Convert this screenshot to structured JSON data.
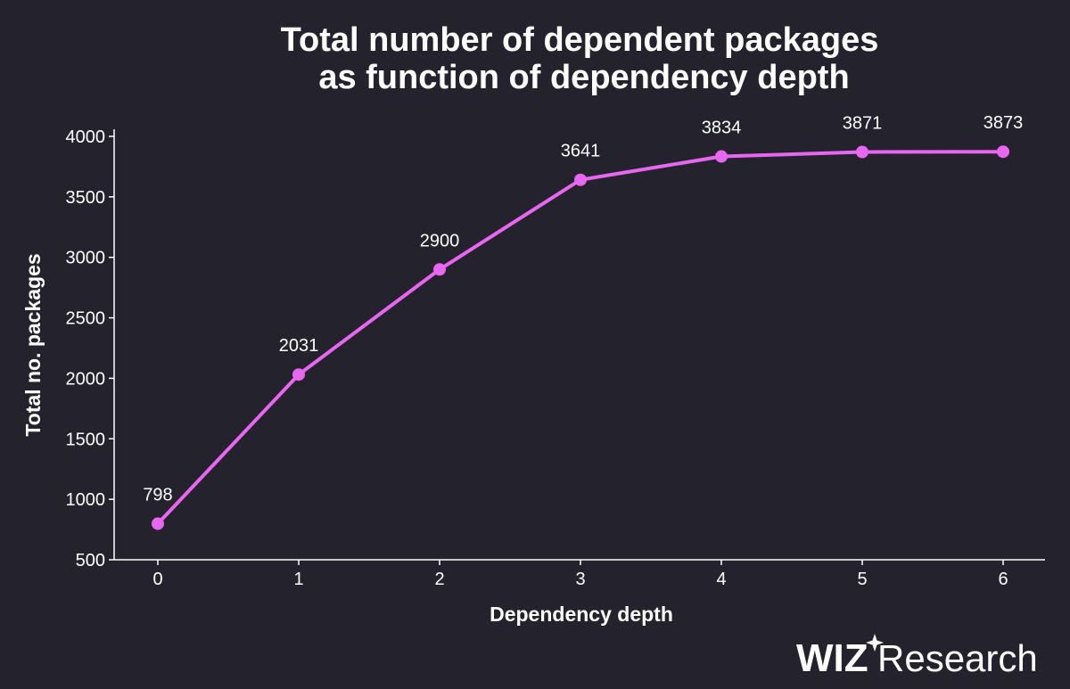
{
  "chart_data": {
    "type": "line",
    "title_lines": [
      "Total number of dependent packages",
      "as function of dependency depth"
    ],
    "xlabel": "Dependency depth",
    "ylabel": "Total no. packages",
    "x": [
      0,
      1,
      2,
      3,
      4,
      5,
      6
    ],
    "values": [
      798,
      2031,
      2900,
      3641,
      3834,
      3871,
      3873
    ],
    "data_labels": [
      "798",
      "2031",
      "2900",
      "3641",
      "3834",
      "3871",
      "3873"
    ],
    "x_ticks": [
      "0",
      "1",
      "2",
      "3",
      "4",
      "5",
      "6"
    ],
    "y_ticks": [
      "500",
      "1000",
      "1500",
      "2000",
      "2500",
      "3000",
      "3500",
      "4000"
    ],
    "ylim": [
      500,
      4000
    ],
    "xlim": [
      0,
      6
    ],
    "grid": false,
    "line_color": "#e867f0",
    "background_color": "#24222d"
  },
  "branding": {
    "logo_bold": "WIZ",
    "logo_light": "Research"
  }
}
